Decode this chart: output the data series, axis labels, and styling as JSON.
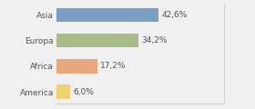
{
  "categories": [
    "Asia",
    "Europa",
    "Africa",
    "America"
  ],
  "values": [
    42.6,
    34.2,
    17.2,
    6.0
  ],
  "labels": [
    "42,6%",
    "34,2%",
    "17,2%",
    "6,0%"
  ],
  "bar_colors": [
    "#7a9fc2",
    "#a8bc8a",
    "#e8a87c",
    "#f0d070"
  ],
  "background_color": "#f0f0f0",
  "xlim": [
    0,
    70
  ],
  "label_fontsize": 6.5,
  "tick_fontsize": 6.5,
  "bar_height": 0.55
}
